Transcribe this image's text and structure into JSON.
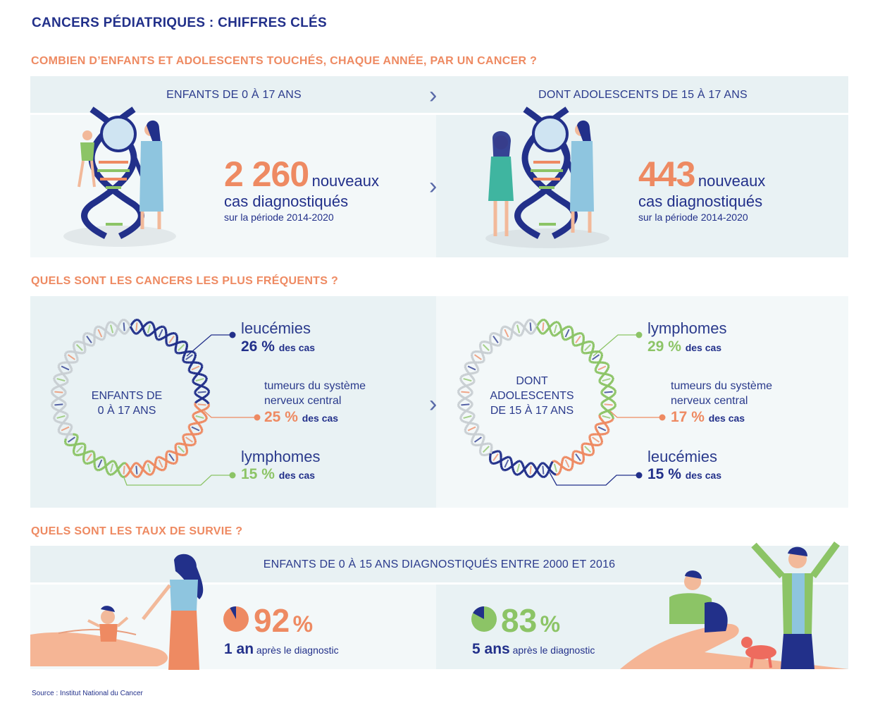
{
  "title": "CANCERS PÉDIATRIQUES : CHIFFRES CLÉS",
  "section1": {
    "title": "COMBIEN D’ENFANTS ET ADOLESCENTS TOUCHÉS, CHAQUE ANNÉE, PAR UN CANCER ?",
    "left": {
      "label": "ENFANTS DE 0 À 17 ANS",
      "number": "2 260",
      "nouveaux": "nouveaux",
      "cas": "cas diagnostiqués",
      "periode": "sur la période 2014-2020"
    },
    "right": {
      "label": "DONT ADOLESCENTS DE 15 À 17 ANS",
      "number": "443",
      "nouveaux": "nouveaux",
      "cas": "cas diagnostiqués",
      "periode": "sur la période 2014-2020"
    }
  },
  "section2": {
    "title": "QUELS SONT LES CANCERS LES PLUS FRÉQUENTS ?",
    "left": {
      "ring_line1": "ENFANTS DE",
      "ring_line2": "0 À 17 ANS",
      "c1": {
        "name": "leucémies",
        "pct": "26 %",
        "des": "des cas"
      },
      "c2": {
        "name_l1": "tumeurs du système",
        "name_l2": "nerveux central",
        "pct": "25 %",
        "des": "des cas"
      },
      "c3": {
        "name": "lymphomes",
        "pct": "15 %",
        "des": "des cas"
      },
      "values": [
        26,
        25,
        15
      ]
    },
    "right": {
      "ring_line1": "DONT",
      "ring_line2": "ADOLESCENTS",
      "ring_line3": "DE 15 À 17 ANS",
      "c1": {
        "name": "lymphomes",
        "pct": "29 %",
        "des": "des cas"
      },
      "c2": {
        "name_l1": "tumeurs du système",
        "name_l2": "nerveux central",
        "pct": "17 %",
        "des": "des cas"
      },
      "c3": {
        "name": "leucémies",
        "pct": "15 %",
        "des": "des cas"
      },
      "values": [
        29,
        17,
        15
      ]
    }
  },
  "section3": {
    "title": "QUELS SONT LES TAUX DE SURVIE ?",
    "band": "ENFANTS DE 0 À 15 ANS DIAGNOSTIQUÉS ENTRE 2000 ET 2016",
    "left": {
      "value": 92,
      "num": "92",
      "pct": "%",
      "period": "1 an",
      "after": "après le diagnostic"
    },
    "right": {
      "value": 83,
      "num": "83",
      "pct": "%",
      "period": "5 ans",
      "after": "après le diagnostic"
    }
  },
  "source": "Source : Institut National du Cancer",
  "colors": {
    "navy": "#22308a",
    "orange": "#ee8a62",
    "green": "#8cc466",
    "grey": "#c9cfd3"
  }
}
